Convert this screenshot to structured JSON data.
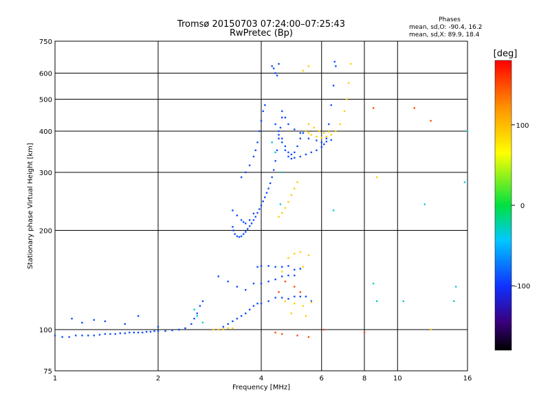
{
  "chart_data": {
    "type": "scatter",
    "title": "Tromsø 20150703 07:24:00–07:25:43",
    "subtitle": "RwPretec (Bp)",
    "xlabel": "Frequency [MHz]",
    "ylabel": "Stationary phase Virtual Height [km]",
    "x_scale": "log",
    "y_scale": "log",
    "xlim": [
      1,
      16
    ],
    "ylim": [
      75,
      750
    ],
    "x_ticks": [
      "1",
      "2",
      "4",
      "6",
      "8",
      "10",
      "16"
    ],
    "y_ticks": [
      "75",
      "100",
      "200",
      "300",
      "400",
      "500",
      "600",
      "750"
    ],
    "grid": true,
    "phase_stats": {
      "heading": "Phases",
      "line_o": "mean, sd,O:  -90.4, 16.2",
      "line_x": "mean, sd,X:   89.9, 18.4"
    },
    "colorbar": {
      "label": "[deg]",
      "range": [
        -180,
        180
      ],
      "ticks": [
        "100",
        "0",
        "-100"
      ]
    },
    "series": [
      {
        "mode": "O",
        "color_value_deg": -90,
        "points": [
          [
            1.0,
            96
          ],
          [
            1.05,
            95
          ],
          [
            1.1,
            95
          ],
          [
            1.15,
            96
          ],
          [
            1.2,
            96
          ],
          [
            1.25,
            96
          ],
          [
            1.3,
            96
          ],
          [
            1.35,
            96.5
          ],
          [
            1.4,
            97
          ],
          [
            1.45,
            97
          ],
          [
            1.5,
            97
          ],
          [
            1.55,
            97.5
          ],
          [
            1.6,
            97.5
          ],
          [
            1.65,
            98
          ],
          [
            1.7,
            98
          ],
          [
            1.75,
            98
          ],
          [
            1.8,
            98
          ],
          [
            1.85,
            98.5
          ],
          [
            1.9,
            98.5
          ],
          [
            1.95,
            99
          ],
          [
            2.0,
            99
          ],
          [
            2.1,
            99
          ],
          [
            2.2,
            99.5
          ],
          [
            2.3,
            100
          ],
          [
            2.4,
            101
          ],
          [
            2.5,
            104
          ],
          [
            2.55,
            108
          ],
          [
            2.6,
            112
          ],
          [
            2.65,
            118
          ],
          [
            2.7,
            122
          ],
          [
            1.12,
            108
          ],
          [
            1.2,
            105
          ],
          [
            1.3,
            107
          ],
          [
            1.4,
            106
          ],
          [
            1.6,
            104
          ],
          [
            1.75,
            110
          ],
          [
            2.0,
            102
          ],
          [
            3.1,
            102
          ],
          [
            3.2,
            104
          ],
          [
            3.3,
            106
          ],
          [
            3.4,
            108
          ],
          [
            3.5,
            110
          ],
          [
            3.6,
            112
          ],
          [
            3.7,
            115
          ],
          [
            3.8,
            118
          ],
          [
            3.9,
            120
          ],
          [
            4.0,
            120
          ],
          [
            4.2,
            122
          ],
          [
            4.4,
            125
          ],
          [
            4.6,
            125
          ],
          [
            4.8,
            124
          ],
          [
            5.0,
            126
          ],
          [
            5.2,
            126
          ],
          [
            5.4,
            126
          ],
          [
            5.6,
            122
          ],
          [
            3.6,
            132
          ],
          [
            3.8,
            138
          ],
          [
            4.0,
            138
          ],
          [
            4.2,
            140
          ],
          [
            4.4,
            142
          ],
          [
            4.6,
            145
          ],
          [
            4.8,
            146
          ],
          [
            5.0,
            146
          ],
          [
            3.9,
            155
          ],
          [
            4.0,
            156
          ],
          [
            4.2,
            156
          ],
          [
            4.4,
            155
          ],
          [
            4.6,
            155
          ],
          [
            4.8,
            156
          ],
          [
            5.0,
            152
          ],
          [
            5.2,
            153
          ],
          [
            3.2,
            140
          ],
          [
            3.4,
            135
          ],
          [
            3.0,
            145
          ],
          [
            3.3,
            205
          ],
          [
            3.32,
            200
          ],
          [
            3.35,
            195
          ],
          [
            3.4,
            192
          ],
          [
            3.45,
            191
          ],
          [
            3.5,
            192
          ],
          [
            3.55,
            195
          ],
          [
            3.6,
            198
          ],
          [
            3.65,
            202
          ],
          [
            3.7,
            206
          ],
          [
            3.75,
            210
          ],
          [
            3.8,
            215
          ],
          [
            3.85,
            220
          ],
          [
            3.9,
            226
          ],
          [
            3.95,
            232
          ],
          [
            4.0,
            238
          ],
          [
            4.05,
            245
          ],
          [
            4.1,
            252
          ],
          [
            4.15,
            260
          ],
          [
            4.2,
            268
          ],
          [
            4.25,
            278
          ],
          [
            4.3,
            290
          ],
          [
            4.35,
            305
          ],
          [
            4.4,
            325
          ],
          [
            4.45,
            350
          ],
          [
            4.5,
            380
          ],
          [
            4.55,
            410
          ],
          [
            4.6,
            440
          ],
          [
            3.3,
            230
          ],
          [
            3.4,
            222
          ],
          [
            3.5,
            215
          ],
          [
            3.55,
            212
          ],
          [
            3.6,
            210
          ],
          [
            3.7,
            215
          ],
          [
            3.8,
            225
          ],
          [
            3.5,
            290
          ],
          [
            3.6,
            300
          ],
          [
            3.7,
            315
          ],
          [
            3.8,
            335
          ],
          [
            3.85,
            350
          ],
          [
            3.9,
            370
          ],
          [
            3.95,
            400
          ],
          [
            4.0,
            430
          ],
          [
            4.05,
            460
          ],
          [
            4.1,
            480
          ],
          [
            4.3,
            630
          ],
          [
            4.35,
            620
          ],
          [
            4.4,
            600
          ],
          [
            4.45,
            590
          ],
          [
            4.5,
            640
          ],
          [
            4.4,
            420
          ],
          [
            4.5,
            400
          ],
          [
            4.6,
            380
          ],
          [
            4.7,
            360
          ],
          [
            4.8,
            345
          ],
          [
            4.9,
            340
          ],
          [
            5.0,
            345
          ],
          [
            5.1,
            360
          ],
          [
            5.2,
            380
          ],
          [
            5.3,
            395
          ],
          [
            5.4,
            400
          ],
          [
            4.5,
            390
          ],
          [
            4.6,
            370
          ],
          [
            4.7,
            350
          ],
          [
            4.8,
            335
          ],
          [
            4.9,
            330
          ],
          [
            5.0,
            332
          ],
          [
            5.2,
            335
          ],
          [
            5.4,
            340
          ],
          [
            5.6,
            345
          ],
          [
            5.8,
            350
          ],
          [
            6.0,
            358
          ],
          [
            6.1,
            365
          ],
          [
            6.2,
            380
          ],
          [
            6.3,
            420
          ],
          [
            6.4,
            480
          ],
          [
            6.5,
            550
          ],
          [
            6.6,
            630
          ],
          [
            6.55,
            650
          ],
          [
            4.6,
            460
          ],
          [
            4.7,
            440
          ],
          [
            4.8,
            420
          ],
          [
            5.0,
            405
          ],
          [
            5.2,
            395
          ],
          [
            5.5,
            380
          ],
          [
            5.8,
            375
          ],
          [
            6.0,
            370
          ],
          [
            6.2,
            372
          ],
          [
            6.4,
            376
          ]
        ]
      },
      {
        "mode": "X",
        "color_value_deg": 90,
        "points": [
          [
            2.9,
            100
          ],
          [
            3.0,
            100
          ],
          [
            3.1,
            100.5
          ],
          [
            3.2,
            101
          ],
          [
            3.3,
            101
          ],
          [
            4.5,
            220
          ],
          [
            4.6,
            226
          ],
          [
            4.7,
            234
          ],
          [
            4.8,
            244
          ],
          [
            4.9,
            256
          ],
          [
            5.0,
            268
          ],
          [
            5.1,
            280
          ],
          [
            5.4,
            400
          ],
          [
            5.5,
            395
          ],
          [
            5.6,
            390
          ],
          [
            5.8,
            385
          ],
          [
            6.0,
            382
          ],
          [
            6.2,
            385
          ],
          [
            6.4,
            390
          ],
          [
            6.6,
            400
          ],
          [
            6.8,
            420
          ],
          [
            7.0,
            460
          ],
          [
            7.1,
            500
          ],
          [
            7.2,
            560
          ],
          [
            7.3,
            640
          ],
          [
            5.5,
            420
          ],
          [
            5.7,
            410
          ],
          [
            5.9,
            400
          ],
          [
            6.1,
            395
          ],
          [
            6.3,
            398
          ],
          [
            4.8,
            165
          ],
          [
            5.0,
            170
          ],
          [
            5.2,
            172
          ],
          [
            5.5,
            168
          ],
          [
            4.6,
            150
          ],
          [
            5.3,
            155
          ],
          [
            4.7,
            122
          ],
          [
            5.0,
            120
          ],
          [
            5.3,
            118
          ],
          [
            5.6,
            121
          ],
          [
            4.9,
            112
          ],
          [
            5.4,
            110
          ],
          [
            5.3,
            610
          ],
          [
            5.5,
            630
          ],
          [
            8.7,
            290
          ],
          [
            12.5,
            100
          ]
        ]
      },
      {
        "mode": "mixed",
        "color_value_deg": -30,
        "points": [
          [
            2.55,
            115
          ],
          [
            2.6,
            110
          ],
          [
            2.7,
            105
          ],
          [
            4.3,
            370
          ],
          [
            4.4,
            345
          ],
          [
            4.6,
            300
          ],
          [
            4.55,
            240
          ],
          [
            6.5,
            230
          ],
          [
            8.5,
            138
          ],
          [
            8.7,
            122
          ],
          [
            10.4,
            122
          ],
          [
            12.0,
            240
          ],
          [
            14.8,
            135
          ],
          [
            14.6,
            122
          ],
          [
            16.0,
            400
          ],
          [
            15.7,
            280
          ]
        ]
      },
      {
        "mode": "mixed",
        "color_value_deg": 150,
        "points": [
          [
            4.5,
            130
          ],
          [
            4.7,
            140
          ],
          [
            5.0,
            135
          ],
          [
            5.2,
            130
          ],
          [
            4.4,
            98
          ],
          [
            4.6,
            97
          ],
          [
            5.1,
            96
          ],
          [
            5.5,
            95
          ],
          [
            8.5,
            470
          ],
          [
            11.2,
            470
          ],
          [
            12.5,
            430
          ],
          [
            6.1,
            100
          ],
          [
            8.0,
            98
          ]
        ]
      }
    ]
  }
}
